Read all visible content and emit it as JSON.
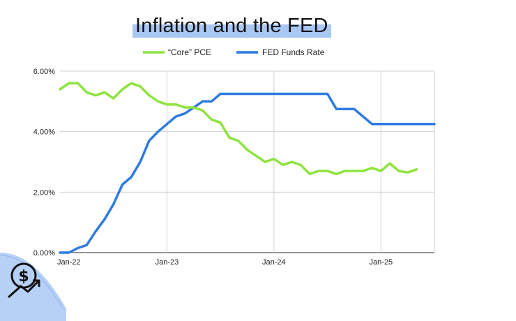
{
  "chart_data": {
    "type": "line",
    "title": "Inflation and the FED",
    "xlabel": "",
    "ylabel": "",
    "x_tick_labels": [
      "Jan-22",
      "Jan-23",
      "Jan-24",
      "Jan-25"
    ],
    "y_tick_labels": [
      "0.00%",
      "2.00%",
      "4.00%",
      "6.00%"
    ],
    "ylim": [
      0,
      6
    ],
    "xlim": [
      0,
      42
    ],
    "grid": true,
    "legend_position": "top-center",
    "series": [
      {
        "name": "“Core” PCE",
        "color": "#8fe33f",
        "x": [
          0,
          1,
          2,
          3,
          4,
          5,
          6,
          7,
          8,
          9,
          10,
          11,
          12,
          13,
          14,
          15,
          16,
          17,
          18,
          19,
          20,
          21,
          22,
          23,
          24,
          25,
          26,
          27,
          28,
          29,
          30,
          31,
          32,
          33,
          34,
          35,
          36,
          37,
          38,
          39,
          40
        ],
        "values": [
          5.4,
          5.6,
          5.6,
          5.3,
          5.2,
          5.3,
          5.1,
          5.4,
          5.6,
          5.5,
          5.2,
          5.0,
          4.9,
          4.9,
          4.8,
          4.8,
          4.7,
          4.4,
          4.3,
          3.8,
          3.7,
          3.4,
          3.2,
          3.0,
          3.1,
          2.9,
          3.0,
          2.9,
          2.6,
          2.7,
          2.7,
          2.6,
          2.7,
          2.7,
          2.7,
          2.8,
          2.7,
          2.95,
          2.7,
          2.65,
          2.75
        ]
      },
      {
        "name": "FED Funds Rate",
        "color": "#2f7be0",
        "x": [
          0,
          1,
          2,
          3,
          4,
          5,
          6,
          7,
          8,
          9,
          10,
          11,
          12,
          13,
          14,
          15,
          16,
          17,
          18,
          19,
          20,
          21,
          22,
          23,
          24,
          25,
          26,
          27,
          28,
          29,
          30,
          31,
          32,
          33,
          34,
          35,
          36,
          37,
          38,
          39,
          40,
          41,
          42
        ],
        "values": [
          0.0,
          0.0,
          0.15,
          0.25,
          0.7,
          1.1,
          1.6,
          2.25,
          2.5,
          3.0,
          3.7,
          4.0,
          4.25,
          4.5,
          4.6,
          4.8,
          5.0,
          5.0,
          5.25,
          5.25,
          5.25,
          5.25,
          5.25,
          5.25,
          5.25,
          5.25,
          5.25,
          5.25,
          5.25,
          5.25,
          5.25,
          4.75,
          4.75,
          4.75,
          4.5,
          4.25,
          4.25,
          4.25,
          4.25,
          4.25,
          4.25,
          4.25,
          4.25
        ]
      }
    ]
  },
  "logo": {
    "icon": "dollar-growth-icon",
    "accent_color": "#b7d0f6"
  }
}
